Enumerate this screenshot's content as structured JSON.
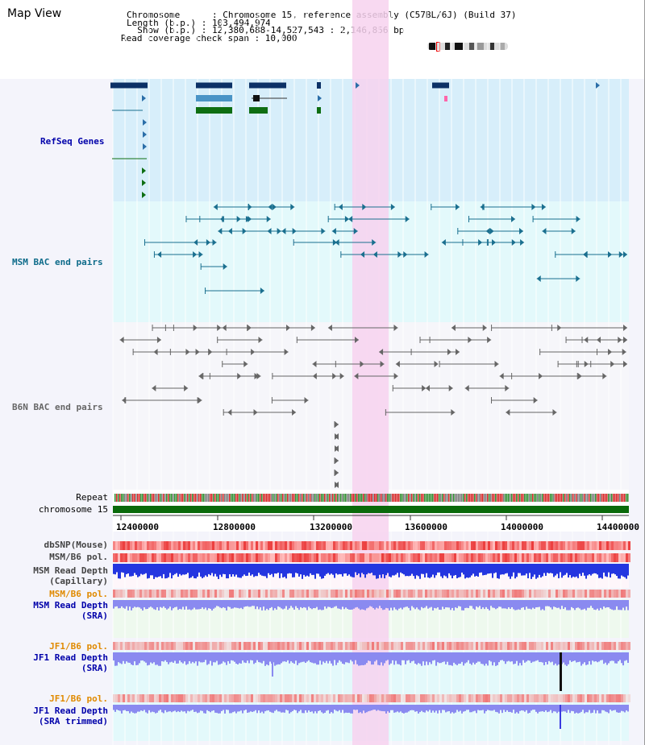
{
  "header": {
    "title": "Map View",
    "info_lines": [
      "Chromosome      : Chromosome 15, reference assembly (C57BL/6J) (Build 37)",
      "Length (b.p.) : 103,494,974",
      "  Show (b.p.) : 12,380,688-14,527,543 : 2,146,856 bp",
      "Read coverage check span : 10,000"
    ]
  },
  "tracks": {
    "refseq": "RefSeq Genes",
    "msm_bac": "MSM BAC end pairs",
    "b6n_bac": "B6N BAC end pairs",
    "repeat": "Repeat",
    "chromosome": "chromosome 15",
    "dbsnp": "dbSNP(Mouse)",
    "msm_b6_pol_1": "MSM/B6 pol.",
    "msm_depth_cap": "MSM Read Depth\n(Capillary)",
    "msm_b6_pol_2": "MSM/B6 pol.",
    "msm_depth_sra": "MSM Read Depth\n(SRA)",
    "jf1_b6_pol_1": "JF1/B6 pol.",
    "jf1_depth_sra": "JF1 Read Depth\n(SRA)",
    "jf1_b6_pol_2": "JF1/B6 pol.",
    "jf1_depth_trim": "JF1 Read Depth\n(SRA trimmed)"
  },
  "axis": {
    "ticks": [
      "12400000",
      "12800000",
      "13200000",
      "13600000",
      "14000000",
      "14400000"
    ]
  },
  "colors": {
    "highlight": "#f7d2ef",
    "refseq_bg": "#d7eefa",
    "msm_bg": "#e3f9fb",
    "gene_dark": "#0c3166",
    "gene_mid": "#4a94c6",
    "gene_green": "#0e6e12",
    "msm_line": "#1a6f8f",
    "b6n_line": "#666666",
    "chrom": "#0a6a0a",
    "depth_blue": "#2436e0",
    "depth_light": "#8a8af0"
  }
}
